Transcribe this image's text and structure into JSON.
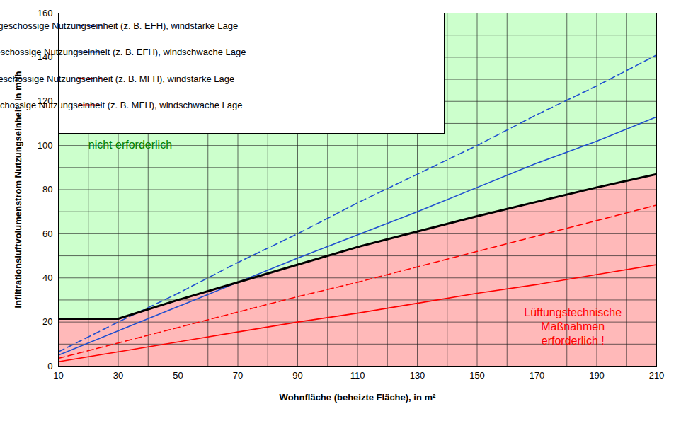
{
  "chart_data": {
    "type": "line",
    "x_label": "Wohnfläche (beheizte Fläche), in m²",
    "y_label": "Infiltrationsluftvolumenstrom Nutzungseinheit, in m³/h",
    "x": [
      10,
      30,
      50,
      70,
      90,
      110,
      130,
      150,
      170,
      190,
      210
    ],
    "xlim": [
      10,
      210
    ],
    "xticks": [
      10,
      30,
      50,
      70,
      90,
      110,
      130,
      150,
      170,
      190,
      210
    ],
    "ylim": [
      0,
      160
    ],
    "yticks": [
      0,
      20,
      40,
      60,
      80,
      100,
      120,
      140,
      160
    ],
    "grid": true,
    "legend": "upper left",
    "series": [
      {
        "name": "mehrgeschossige Nutzungseinheit (z. B. EFH), windstarke Lage",
        "color": "#1f4fd0",
        "line_style": "dashed",
        "values": [
          6.5,
          20,
          33,
          47,
          60,
          74,
          87,
          100,
          114,
          127,
          141
        ]
      },
      {
        "name": "mehrgeschossige Nutzungseinheit (z. B. EFH), windschwache Lage",
        "color": "#1f4fd0",
        "line_style": "solid",
        "values": [
          5,
          16,
          27,
          38,
          49,
          59.5,
          70,
          81,
          92,
          102,
          113
        ]
      },
      {
        "name": "eingeschossige Nutzungseinheit (z. B. MFH), windstarke Lage",
        "color": "#ff0000",
        "line_style": "dashed",
        "values": [
          3.5,
          10.5,
          17.5,
          24.5,
          31.5,
          38,
          45,
          52,
          59,
          66,
          73
        ]
      },
      {
        "name": "eingeschossige Nutzungseinheit (z. B. MFH), windschwache Lage",
        "color": "#ff0000",
        "line_style": "solid",
        "values": [
          2,
          6.5,
          11,
          15.5,
          20,
          24,
          28.5,
          33,
          37,
          41.5,
          46
        ]
      }
    ],
    "boundary": {
      "color": "#000000",
      "values": [
        21.5,
        21.5,
        30,
        38,
        46,
        54,
        61,
        68,
        74.5,
        81,
        87
      ]
    },
    "annotations": [
      {
        "text": "Lüftungstechnische\nMaßnahmen\nnicht erforderlich",
        "color": "#008000"
      },
      {
        "text": "Lüftungstechnische\nMaßnahmen\nerforderlich !",
        "color": "#ff0000"
      }
    ]
  }
}
